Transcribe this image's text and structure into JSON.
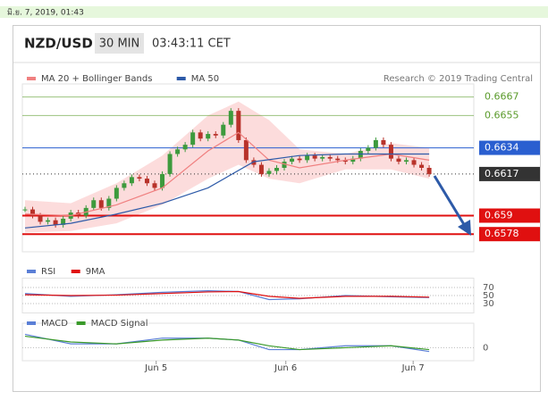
{
  "header": {
    "timestamp": "มิ.ย. 7, 2019, 01:43",
    "symbol": "NZD/USD",
    "timeframe": "30 MIN",
    "time": "03:43:11 CET",
    "credit": "Research © 2019 Trading Central"
  },
  "chart_data": [
    {
      "type": "candlestick",
      "x": [
        0,
        1,
        2,
        3,
        4,
        5,
        6,
        7,
        8,
        9,
        10,
        11,
        12,
        13,
        14,
        15,
        16,
        17,
        18,
        19,
        20,
        21,
        22,
        23,
        24,
        25,
        26,
        27,
        28,
        29,
        30,
        31,
        32,
        33,
        34,
        35,
        36,
        37,
        38,
        39,
        40,
        41,
        42,
        43,
        44,
        45,
        46,
        47,
        48,
        49,
        50,
        51,
        52,
        53
      ],
      "xlim": [
        -0.35,
        58.85
      ],
      "ylim": [
        0.657,
        0.6672
      ],
      "series": [
        {
          "kind": "candle",
          "up_color": "#3d9a3d",
          "down_color": "#b8322a",
          "values": [
            0.6594,
            0.659,
            0.6586,
            0.6587,
            0.6584,
            0.6588,
            0.6592,
            0.659,
            0.6595,
            0.66,
            0.6595,
            0.6601,
            0.6608,
            0.6611,
            0.6615,
            0.6614,
            0.6611,
            0.6608,
            0.6617,
            0.663,
            0.6633,
            0.6636,
            0.6644,
            0.664,
            0.6643,
            0.6642,
            0.6649,
            0.6658,
            0.6639,
            0.6626,
            0.6623,
            0.6617,
            0.6619,
            0.6621,
            0.6625,
            0.6627,
            0.6626,
            0.6629,
            0.6627,
            0.6628,
            0.6627,
            0.6626,
            0.6625,
            0.6627,
            0.6632,
            0.6634,
            0.6639,
            0.6636,
            0.6627,
            0.6625,
            0.6626,
            0.6623,
            0.6621,
            0.6617
          ]
        },
        {
          "name": "MA 20 + Bollinger Bands",
          "kind": "band",
          "color": "#f08080",
          "band_color": "#fbd3d3",
          "x": [
            0,
            6,
            12,
            18,
            24,
            28,
            32,
            36,
            42,
            48,
            53
          ],
          "values": [
            0.6591,
            0.659,
            0.6597,
            0.6608,
            0.6632,
            0.6644,
            0.6626,
            0.6621,
            0.6626,
            0.663,
            0.6626
          ],
          "upper": [
            0.66,
            0.6598,
            0.6611,
            0.6629,
            0.6655,
            0.6664,
            0.6652,
            0.6633,
            0.663,
            0.6637,
            0.6634
          ],
          "lower": [
            0.6579,
            0.658,
            0.6585,
            0.6597,
            0.6614,
            0.6623,
            0.6614,
            0.6611,
            0.662,
            0.662,
            0.6614
          ]
        },
        {
          "name": "MA 50",
          "kind": "line",
          "color": "#2d5aa8",
          "x": [
            0,
            6,
            12,
            18,
            24,
            30,
            36,
            42,
            48,
            53
          ],
          "values": [
            0.6582,
            0.6585,
            0.6591,
            0.6598,
            0.6608,
            0.6625,
            0.6629,
            0.663,
            0.663,
            0.663
          ]
        }
      ],
      "levels": [
        {
          "value": 0.6667,
          "color": "#5a9a2a",
          "label_style": "text"
        },
        {
          "value": 0.6655,
          "color": "#5a9a2a",
          "label_style": "text"
        },
        {
          "value": 0.6634,
          "color": "#2a5fd0",
          "label_style": "box"
        },
        {
          "value": 0.6617,
          "color": "#333333",
          "label_style": "box",
          "dotted": true
        },
        {
          "value": 0.659,
          "color": "#e01010",
          "label_style": "box"
        },
        {
          "value": 0.6578,
          "color": "#e01010",
          "label_style": "box"
        }
      ]
    },
    {
      "type": "line",
      "x": [
        0,
        6,
        12,
        18,
        24,
        28,
        32,
        36,
        42,
        48,
        53
      ],
      "xlim": [
        -0.35,
        58.85
      ],
      "ylim": [
        20,
        80
      ],
      "yticks": [
        70,
        50,
        30
      ],
      "series": [
        {
          "name": "RSI",
          "color": "#5b7fd6",
          "values": [
            55,
            48,
            52,
            58,
            62,
            60,
            40,
            42,
            50,
            47,
            45
          ]
        },
        {
          "name": "9MA",
          "color": "#e01010",
          "values": [
            52,
            50,
            51,
            55,
            59,
            60,
            48,
            43,
            48,
            48,
            46
          ]
        }
      ]
    },
    {
      "type": "line",
      "x": [
        0,
        6,
        12,
        18,
        24,
        28,
        32,
        36,
        42,
        48,
        53
      ],
      "xlim": [
        -0.35,
        58.85
      ],
      "ylim": [
        -0.0004,
        0.001
      ],
      "yticks": [
        0
      ],
      "xticks": [
        {
          "value": 17.2,
          "label": "Jun 5"
        },
        {
          "value": 34.2,
          "label": "Jun 6"
        },
        {
          "value": 50.9,
          "label": "Jun 7"
        }
      ],
      "series": [
        {
          "name": "MACD",
          "color": "#5b7fd6",
          "values": [
            0.0007,
            0.0002,
            0.0002,
            0.0005,
            0.0005,
            0.0004,
            -0.0001,
            -0.0001,
            0.0001,
            0.0001,
            -0.0002
          ]
        },
        {
          "name": "MACD Signal",
          "color": "#3a9a2a",
          "values": [
            0.0006,
            0.0003,
            0.0002,
            0.0004,
            0.0005,
            0.0004,
            0.0001,
            -0.0001,
            0.0,
            0.0001,
            -0.0001
          ]
        }
      ]
    }
  ]
}
